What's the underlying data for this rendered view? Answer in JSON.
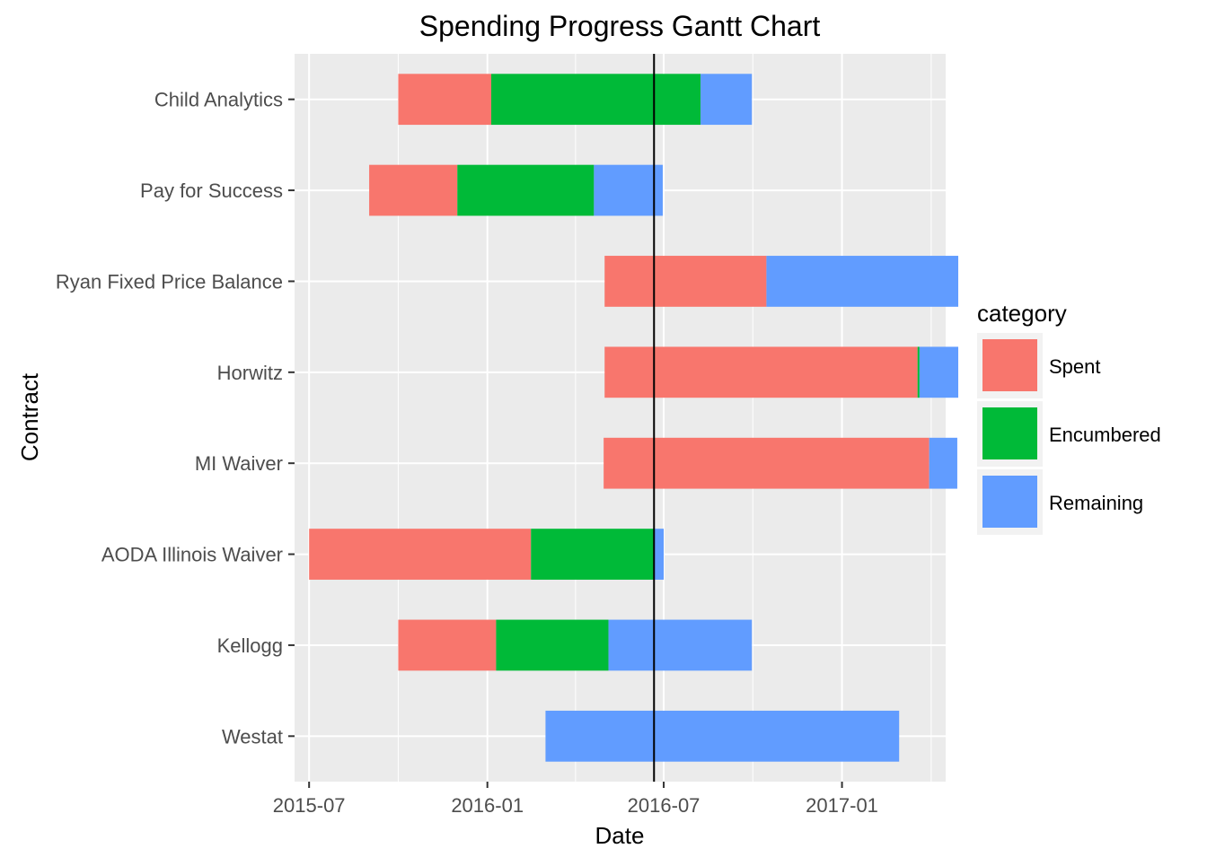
{
  "chart_data": {
    "type": "gantt",
    "title": "Spending Progress Gantt Chart",
    "xlabel": "Date",
    "ylabel": "Contract",
    "xlim": [
      "2015-06-16",
      "2017-04-18"
    ],
    "x_ticks": [
      "2015-07-01",
      "2016-01-01",
      "2016-07-01",
      "2017-01-01"
    ],
    "x_tick_labels": [
      "2015-07",
      "2016-01",
      "2016-07",
      "2017-01"
    ],
    "grid": true,
    "legend": {
      "title": "category",
      "position": "right",
      "entries": [
        "Spent",
        "Encumbered",
        "Remaining"
      ]
    },
    "colors": {
      "Spent": "#F8766D",
      "Encumbered": "#00BA38",
      "Remaining": "#619CFF"
    },
    "reference_line": "2016-06-21",
    "categories": [
      "Child Analytics",
      "Pay for Success",
      "Ryan Fixed Price Balance",
      "Horwitz",
      "MI Waiver",
      "AODA Illinois Waiver",
      "Kellogg",
      "Westat"
    ],
    "bars": [
      {
        "contract": "Child Analytics",
        "segments": [
          {
            "category": "Spent",
            "start": "2015-10-01",
            "end": "2016-01-05"
          },
          {
            "category": "Encumbered",
            "start": "2016-01-05",
            "end": "2016-08-08"
          },
          {
            "category": "Remaining",
            "start": "2016-08-08",
            "end": "2016-09-30"
          }
        ]
      },
      {
        "contract": "Pay for Success",
        "segments": [
          {
            "category": "Spent",
            "start": "2015-09-01",
            "end": "2015-12-01"
          },
          {
            "category": "Encumbered",
            "start": "2015-12-01",
            "end": "2016-04-20"
          },
          {
            "category": "Remaining",
            "start": "2016-04-20",
            "end": "2016-06-30"
          }
        ]
      },
      {
        "contract": "Ryan Fixed Price Balance",
        "segments": [
          {
            "category": "Spent",
            "start": "2016-05-01",
            "end": "2016-10-15"
          },
          {
            "category": "Remaining",
            "start": "2016-10-15",
            "end": "2017-05-01"
          }
        ]
      },
      {
        "contract": "Horwitz",
        "segments": [
          {
            "category": "Spent",
            "start": "2016-05-01",
            "end": "2017-03-20"
          },
          {
            "category": "Encumbered",
            "start": "2017-03-20",
            "end": "2017-03-22"
          },
          {
            "category": "Remaining",
            "start": "2017-03-22",
            "end": "2017-05-01"
          }
        ]
      },
      {
        "contract": "MI Waiver",
        "segments": [
          {
            "category": "Spent",
            "start": "2016-04-30",
            "end": "2017-04-01"
          },
          {
            "category": "Remaining",
            "start": "2017-04-01",
            "end": "2017-04-30"
          }
        ]
      },
      {
        "contract": "AODA Illinois Waiver",
        "segments": [
          {
            "category": "Spent",
            "start": "2015-07-01",
            "end": "2016-02-15"
          },
          {
            "category": "Encumbered",
            "start": "2016-02-15",
            "end": "2016-06-21"
          },
          {
            "category": "Remaining",
            "start": "2016-06-21",
            "end": "2016-07-01"
          }
        ]
      },
      {
        "contract": "Kellogg",
        "segments": [
          {
            "category": "Spent",
            "start": "2015-10-01",
            "end": "2016-01-10"
          },
          {
            "category": "Encumbered",
            "start": "2016-01-10",
            "end": "2016-05-05"
          },
          {
            "category": "Remaining",
            "start": "2016-05-05",
            "end": "2016-09-30"
          }
        ]
      },
      {
        "contract": "Westat",
        "segments": [
          {
            "category": "Remaining",
            "start": "2016-03-01",
            "end": "2017-03-01"
          }
        ]
      }
    ]
  }
}
